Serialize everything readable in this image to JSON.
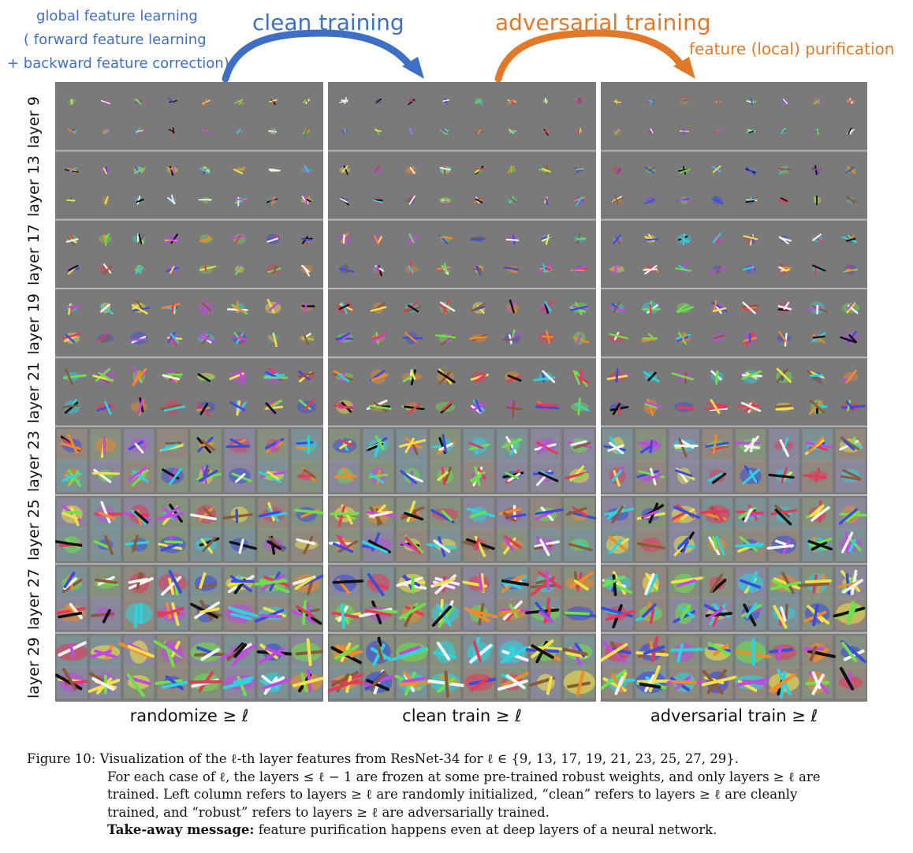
{
  "annotations": {
    "global_1": "global feature learning",
    "global_2": "( forward feature learning",
    "global_3": "+ backward feature correction)",
    "clean_training": "clean training",
    "adversarial_training": "adversarial training",
    "feature_purification": "feature (local) purification"
  },
  "colors": {
    "blue": "#3f6fc2",
    "orange": "#e07a2a",
    "panel_gray": "#7a7a7a"
  },
  "rows": [
    {
      "label": "layer 9"
    },
    {
      "label": "layer 13"
    },
    {
      "label": "layer 17"
    },
    {
      "label": "layer 19"
    },
    {
      "label": "layer 21"
    },
    {
      "label": "layer 23"
    },
    {
      "label": "layer 25"
    },
    {
      "label": "layer 27"
    },
    {
      "label": "layer 29"
    }
  ],
  "columns": [
    {
      "caption": "randomize ≥ ℓ"
    },
    {
      "caption": "clean train ≥ ℓ"
    },
    {
      "caption": "adversarial train ≥ ℓ"
    }
  ],
  "caption": {
    "lead": "Figure 10: Visualization of the ℓ-th layer features from ResNet-34 for ℓ ∈ {9, 13, 17, 19, 21, 23, 25, 27, 29}.",
    "line2": "For each case of ℓ, the layers ≤ ℓ − 1 are frozen at some pre-trained robust weights, and only layers ≥ ℓ are",
    "line3": "trained. Left column refers to layers ≥ ℓ are randomly initialized, “clean” refers to layers ≥ ℓ are cleanly",
    "line4": "trained, and “robust” refers to layers ≥ ℓ are adversarially trained.",
    "takeaway_label": "Take-away message:",
    "takeaway_text": " feature purification happens even at deep layers of a neural network."
  }
}
